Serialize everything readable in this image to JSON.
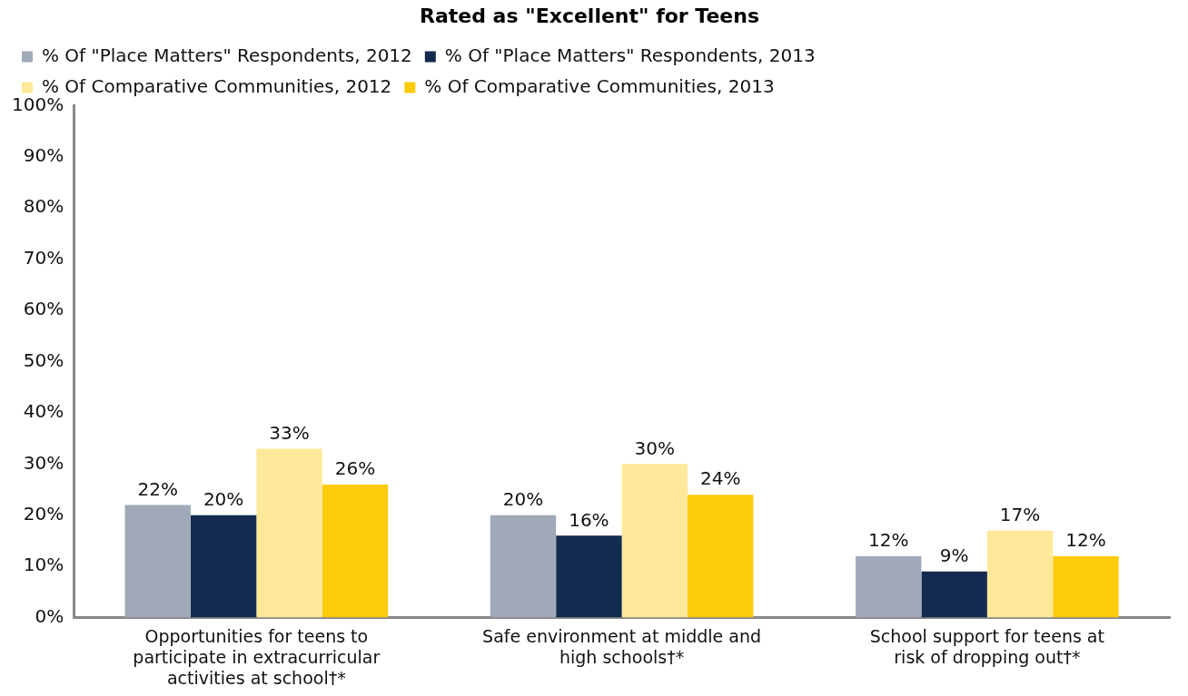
{
  "chart_data": {
    "type": "bar",
    "title": "Rated as \"Excellent\" for Teens",
    "categories": [
      "Opportunities for teens to participate in extracurricular activities at school†*",
      "Safe environment at middle and high schools†*",
      "School support for teens at risk of dropping out†*"
    ],
    "series": [
      {
        "name": "% Of \"Place Matters\" Respondents, 2012",
        "color": "#a0a9b8",
        "values": [
          22,
          20,
          12
        ],
        "value_labels": [
          "22%",
          "20%",
          "12%"
        ]
      },
      {
        "name": "% Of \"Place Matters\" Respondents, 2013",
        "color": "#132b4e",
        "values": [
          20,
          16,
          9
        ],
        "value_labels": [
          "20%",
          "16%",
          "9%"
        ]
      },
      {
        "name": "% Of Comparative Communities, 2012",
        "color": "#fee89a",
        "values": [
          33,
          30,
          17
        ],
        "value_labels": [
          "33%",
          "30%",
          "17%"
        ]
      },
      {
        "name": "% Of Comparative Communities, 2013",
        "color": "#fdcb0c",
        "values": [
          26,
          24,
          12
        ],
        "value_labels": [
          "26%",
          "24%",
          "12%"
        ]
      }
    ],
    "ylim": [
      0,
      100
    ],
    "yticks": [
      {
        "value": 0,
        "label": "0%"
      },
      {
        "value": 10,
        "label": "10%"
      },
      {
        "value": 20,
        "label": "20%"
      },
      {
        "value": 30,
        "label": "30%"
      },
      {
        "value": 40,
        "label": "40%"
      },
      {
        "value": 50,
        "label": "50%"
      },
      {
        "value": 60,
        "label": "60%"
      },
      {
        "value": 70,
        "label": "70%"
      },
      {
        "value": 80,
        "label": "80%"
      },
      {
        "value": 90,
        "label": "90%"
      },
      {
        "value": 100,
        "label": "100%"
      }
    ],
    "grid": false,
    "legend": "top"
  }
}
